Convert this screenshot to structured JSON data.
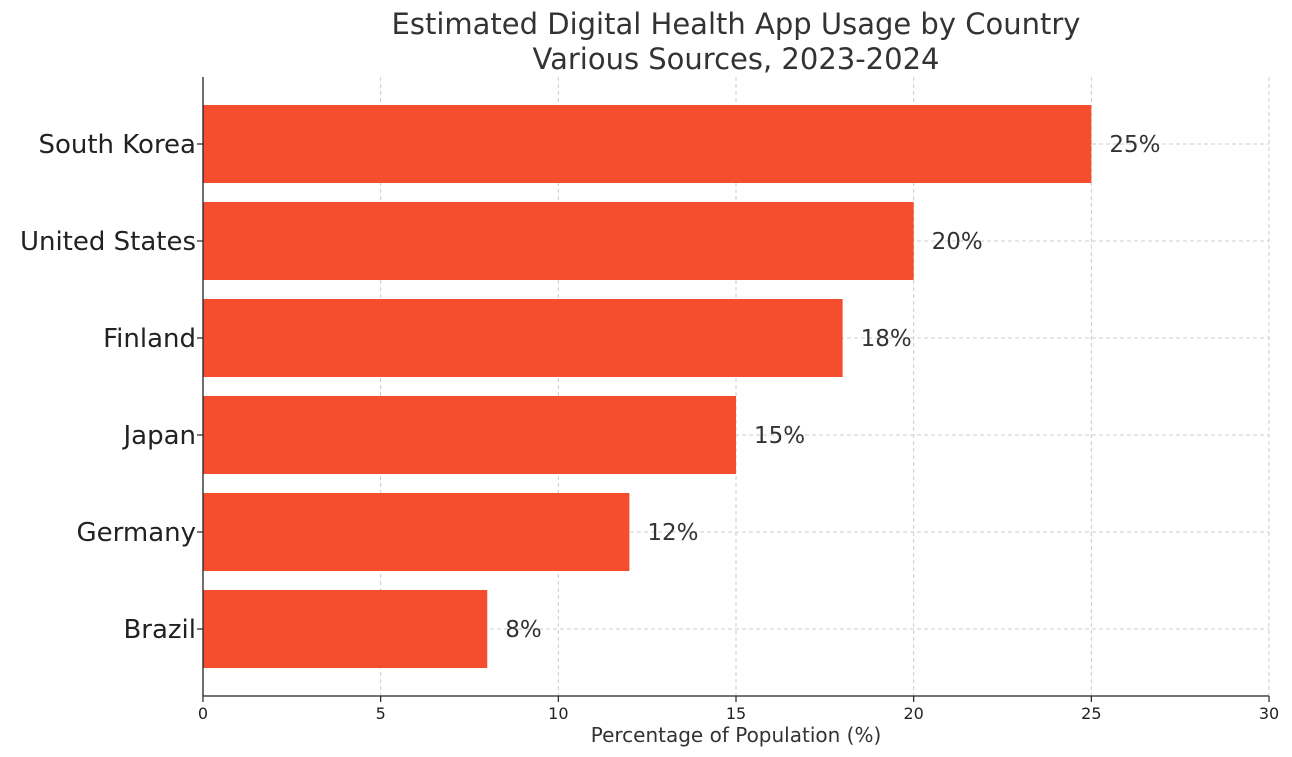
{
  "chart_data": {
    "type": "bar",
    "orientation": "horizontal",
    "title": "Estimated Digital Health App Usage by Country",
    "subtitle": "Various Sources, 2023-2024",
    "xlabel": "Percentage of Population (%)",
    "ylabel": "",
    "categories": [
      "South Korea",
      "United States",
      "Finland",
      "Japan",
      "Germany",
      "Brazil"
    ],
    "values": [
      25,
      20,
      18,
      15,
      12,
      8
    ],
    "data_labels": [
      "25%",
      "20%",
      "18%",
      "15%",
      "12%",
      "8%"
    ],
    "xlim": [
      0,
      30
    ],
    "xticks": [
      0,
      5,
      10,
      15,
      20,
      25,
      30
    ],
    "grid": true,
    "bar_color": "#f44e2e"
  }
}
